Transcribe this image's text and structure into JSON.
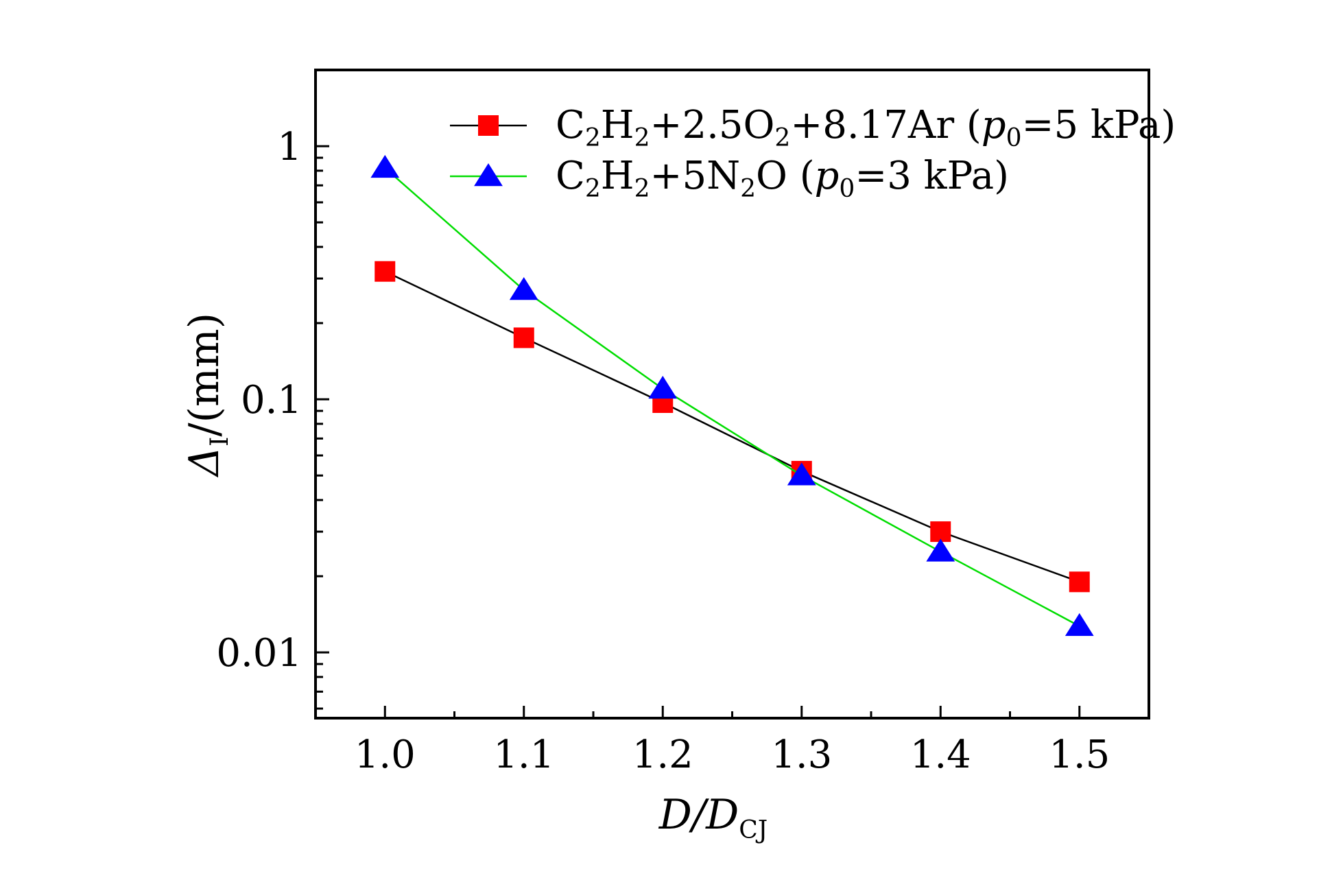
{
  "chart_data": {
    "type": "line",
    "y_scale": "log",
    "x": [
      1.0,
      1.1,
      1.2,
      1.3,
      1.4,
      1.5
    ],
    "xlim": [
      0.95,
      1.55
    ],
    "ylim": [
      0.0055,
      2.0
    ],
    "x_ticks": [
      "1.0",
      "1.1",
      "1.2",
      "1.3",
      "1.4",
      "1.5"
    ],
    "y_ticks": [
      {
        "value": 1,
        "label": "1"
      },
      {
        "value": 0.1,
        "label": "0.1"
      },
      {
        "value": 0.01,
        "label": "0.01"
      }
    ],
    "xlabel": {
      "main": "D/D",
      "sub": "CJ"
    },
    "ylabel": {
      "main": "Δ",
      "sub": "I",
      "rest": "/(mm)"
    },
    "grid": false,
    "legend_position": "top-right",
    "series": [
      {
        "name_parts": [
          "C",
          "2",
          "H",
          "2",
          "+2.5O",
          "2",
          "+8.17Ar (",
          "p",
          "0",
          "=5 kPa)"
        ],
        "marker": "square",
        "marker_color": "#ff0000",
        "line_color": "#000000",
        "values": [
          0.32,
          0.175,
          0.097,
          0.052,
          0.03,
          0.019
        ]
      },
      {
        "name_parts": [
          "C",
          "2",
          "H",
          "2",
          "+5N",
          "2",
          "O (",
          "p",
          "0",
          "=3 kPa)"
        ],
        "marker": "triangle",
        "marker_color": "#0000ff",
        "line_color": "#00dd00",
        "values": [
          0.82,
          0.27,
          0.11,
          0.05,
          0.025,
          0.0127
        ]
      }
    ]
  }
}
